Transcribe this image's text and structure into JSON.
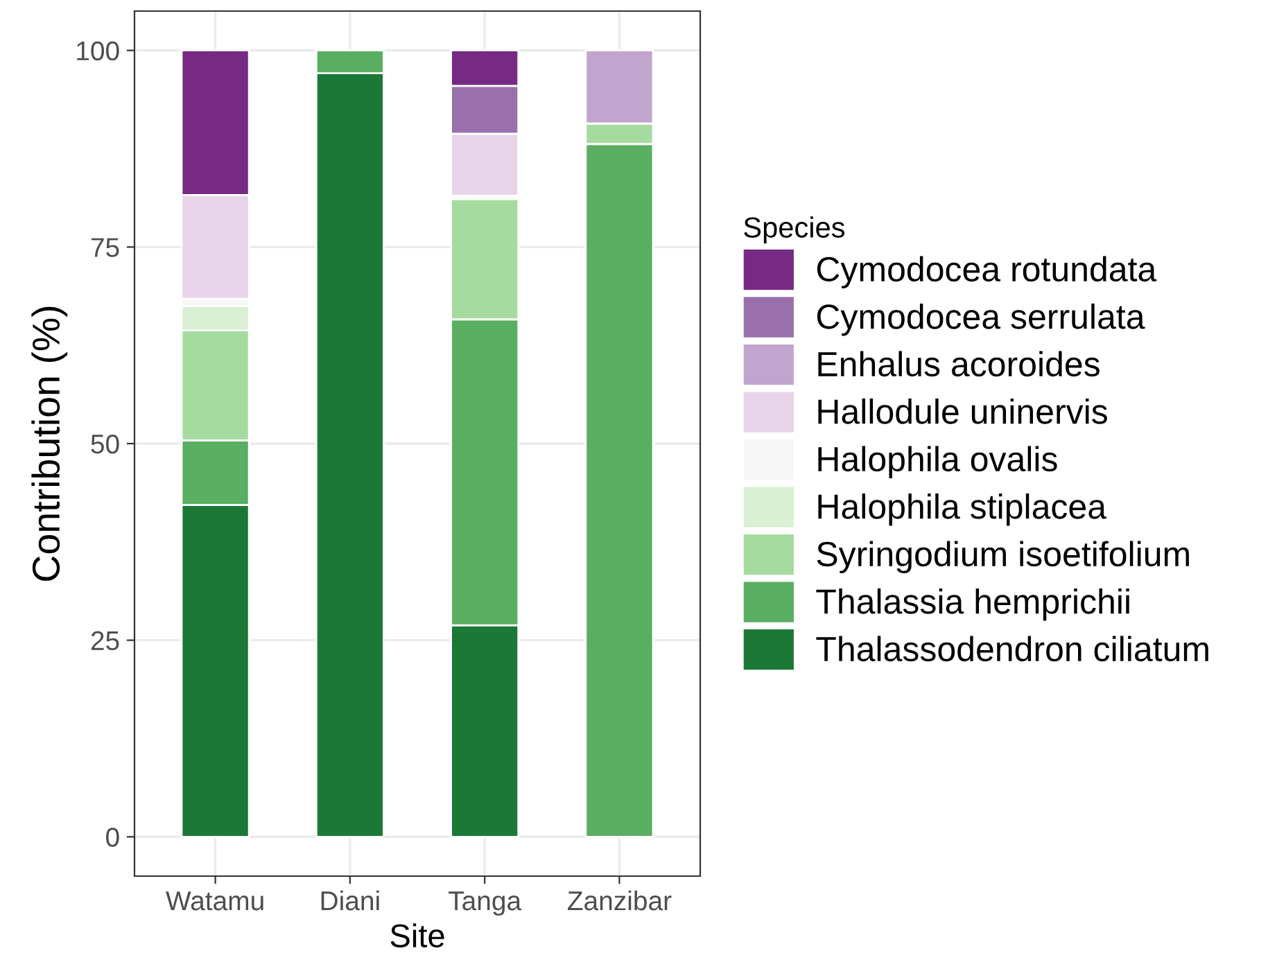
{
  "chart_data": {
    "type": "bar",
    "stacked": true,
    "xlabel": "Site",
    "ylabel": "Contribution (%)",
    "legend_title": "Species",
    "legend": "right",
    "grid": true,
    "categories": [
      "Watamu",
      "Diani",
      "Tanga",
      "Zanzibar"
    ],
    "ylim": [
      -5,
      105
    ],
    "yticks": [
      0,
      25,
      50,
      75,
      100
    ],
    "series": [
      {
        "name": "Thalassodendron ciliatum",
        "color": "#1b7837",
        "values": [
          42.2,
          97.1,
          26.9,
          null
        ]
      },
      {
        "name": "Thalassia hemprichii",
        "color": "#5aae61",
        "values": [
          8.2,
          2.9,
          38.9,
          88.1
        ]
      },
      {
        "name": "Syringodium isoetifolium",
        "color": "#a6dba0",
        "values": [
          14.0,
          null,
          15.3,
          2.6
        ]
      },
      {
        "name": "Halophila stiplacea",
        "color": "#d9f0d3",
        "values": [
          3.1,
          null,
          null,
          null
        ]
      },
      {
        "name": "Halophila ovalis",
        "color": "#f7f7f7",
        "values": [
          0.9,
          null,
          0.4,
          null
        ]
      },
      {
        "name": "Hallodule uninervis",
        "color": "#e7d4e8",
        "values": [
          13.2,
          null,
          7.9,
          null
        ]
      },
      {
        "name": "Enhalus acoroides",
        "color": "#c2a5cf",
        "values": [
          null,
          null,
          null,
          9.3
        ]
      },
      {
        "name": "Cymodocea serrulata",
        "color": "#9970ab",
        "values": [
          null,
          null,
          6.1,
          null
        ]
      },
      {
        "name": "Cymodocea rotundata",
        "color": "#762a83",
        "values": [
          18.4,
          null,
          4.5,
          null
        ]
      }
    ]
  }
}
